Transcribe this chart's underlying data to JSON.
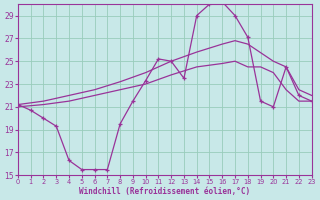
{
  "xlabel": "Windchill (Refroidissement éolien,°C)",
  "bg_color": "#c8e8e8",
  "line_color": "#993399",
  "grid_color": "#99ccbb",
  "xlim": [
    0,
    23
  ],
  "ylim": [
    15,
    30
  ],
  "xticks": [
    0,
    1,
    2,
    3,
    4,
    5,
    6,
    7,
    8,
    9,
    10,
    11,
    12,
    13,
    14,
    15,
    16,
    17,
    18,
    19,
    20,
    21,
    22,
    23
  ],
  "yticks": [
    15,
    17,
    19,
    21,
    23,
    25,
    27,
    29
  ],
  "loop_x": [
    0,
    1,
    2,
    3,
    4,
    5,
    6,
    7,
    8,
    9,
    10,
    11,
    12,
    13,
    14,
    15,
    16,
    17,
    18,
    19,
    20,
    21,
    22,
    23
  ],
  "loop_y": [
    21.2,
    20.7,
    20.0,
    19.3,
    16.3,
    15.5,
    15.5,
    15.5,
    19.5,
    21.5,
    23.3,
    25.2,
    25.0,
    23.5,
    29.0,
    30.0,
    30.2,
    29.0,
    27.1,
    21.5,
    21.0,
    24.5,
    22.0,
    21.5
  ],
  "upper_x": [
    0,
    2,
    4,
    6,
    8,
    10,
    12,
    14,
    16,
    17,
    18,
    20,
    21,
    22,
    23
  ],
  "upper_y": [
    21.2,
    21.5,
    22.0,
    22.5,
    23.2,
    24.0,
    25.0,
    25.8,
    26.5,
    26.8,
    26.5,
    25.0,
    24.5,
    22.5,
    22.0
  ],
  "lower_x": [
    0,
    2,
    4,
    6,
    8,
    10,
    12,
    14,
    16,
    17,
    18,
    19,
    20,
    21,
    22,
    23
  ],
  "lower_y": [
    21.0,
    21.2,
    21.5,
    22.0,
    22.5,
    23.0,
    23.8,
    24.5,
    24.8,
    25.0,
    24.5,
    24.5,
    24.0,
    22.5,
    21.5,
    21.5
  ]
}
